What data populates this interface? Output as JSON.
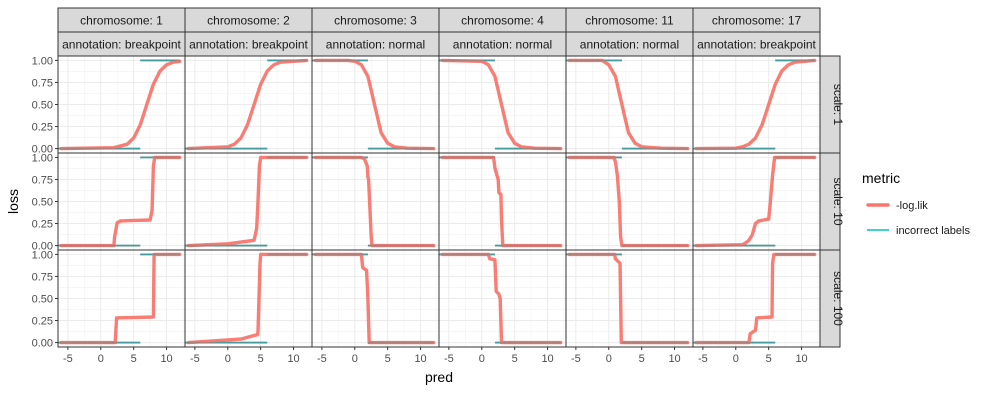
{
  "chart_data": {
    "type": "line",
    "title": "",
    "xlabel": "pred",
    "ylabel": "loss",
    "xlim": [
      -6.5,
      12.8
    ],
    "ylim": [
      -0.05,
      1.05
    ],
    "x_ticks": [
      -5,
      0,
      5,
      10
    ],
    "x_tick_labels": [
      "-5",
      "0",
      "5",
      "10"
    ],
    "y_ticks": [
      0,
      0.25,
      0.5,
      0.75,
      1
    ],
    "y_tick_labels": [
      "0.00",
      "0.25",
      "0.50",
      "0.75",
      "1.00"
    ],
    "grid": true,
    "legend": {
      "title": "metric",
      "placement": "right",
      "entries": [
        {
          "label": "-log.lik",
          "color": "#F8766D"
        },
        {
          "label": "incorrect labels",
          "color": "#00BFC4"
        }
      ]
    },
    "columns": [
      {
        "chromosome_label": "chromosome: 1",
        "annotation_label": "annotation: breakpoint",
        "annotation": "breakpoint",
        "center": 8
      },
      {
        "chromosome_label": "chromosome: 2",
        "annotation_label": "annotation: breakpoint",
        "annotation": "breakpoint",
        "center": 4
      },
      {
        "chromosome_label": "chromosome: 3",
        "annotation_label": "annotation: normal",
        "annotation": "normal",
        "center": 2.5
      },
      {
        "chromosome_label": "chromosome: 4",
        "annotation_label": "annotation: normal",
        "annotation": "normal",
        "center": 3
      },
      {
        "chromosome_label": "chromosome: 11",
        "annotation_label": "annotation: normal",
        "annotation": "normal",
        "center": 2
      },
      {
        "chromosome_label": "chromosome: 17",
        "annotation_label": "annotation: breakpoint",
        "annotation": "breakpoint",
        "center": 5.5
      }
    ],
    "rows": [
      {
        "scale_label": "scale: 1",
        "scale": 1
      },
      {
        "scale_label": "scale: 10",
        "scale": 10
      },
      {
        "scale_label": "scale: 100",
        "scale": 100
      }
    ],
    "incorrect_labels": {
      "breakpoint": {
        "low_segment": [
          -6.5,
          6
        ],
        "low_value": 0,
        "high_segment": [
          6,
          12
        ],
        "high_value": 1
      },
      "normal": {
        "high_segment": [
          -6.5,
          2
        ],
        "high_value": 1,
        "low_segment": [
          2,
          12
        ],
        "low_value": 0
      }
    },
    "series": [
      {
        "name": "-log.lik",
        "panels": [
          {
            "col": 0,
            "row": 0,
            "x": [
              -6,
              2,
              4,
              5,
              6,
              7,
              8,
              9,
              10,
              11,
              12
            ],
            "y": [
              0,
              0.01,
              0.05,
              0.12,
              0.27,
              0.5,
              0.73,
              0.88,
              0.95,
              0.98,
              0.99
            ]
          },
          {
            "col": 0,
            "row": 1,
            "x": [
              -6,
              2,
              2.1,
              2.5,
              3,
              7.5,
              7.8,
              8,
              8.2,
              12
            ],
            "y": [
              0,
              0,
              0.1,
              0.26,
              0.28,
              0.29,
              0.4,
              0.9,
              1,
              1
            ]
          },
          {
            "col": 0,
            "row": 2,
            "x": [
              -6,
              2.2,
              2.4,
              8,
              8.1,
              12
            ],
            "y": [
              0,
              0,
              0.28,
              0.29,
              1,
              1
            ]
          },
          {
            "col": 1,
            "row": 0,
            "x": [
              -6,
              0,
              1,
              2,
              3,
              4,
              5,
              6,
              7,
              8,
              12
            ],
            "y": [
              0,
              0.02,
              0.05,
              0.12,
              0.27,
              0.5,
              0.73,
              0.88,
              0.95,
              0.98,
              1
            ]
          },
          {
            "col": 1,
            "row": 1,
            "x": [
              -6,
              0,
              2,
              3,
              4,
              4.4,
              4.6,
              4.8,
              5,
              12
            ],
            "y": [
              0,
              0.02,
              0.04,
              0.05,
              0.06,
              0.2,
              0.5,
              0.9,
              1,
              1
            ]
          },
          {
            "col": 1,
            "row": 2,
            "x": [
              -6,
              2,
              4,
              4.5,
              4.6,
              4.9,
              5,
              12
            ],
            "y": [
              0,
              0.04,
              0.08,
              0.09,
              0.12,
              0.9,
              1,
              1
            ]
          },
          {
            "col": 2,
            "row": 0,
            "x": [
              -6,
              -1,
              0,
              1,
              2,
              3,
              4,
              5,
              6,
              8,
              12
            ],
            "y": [
              1,
              1,
              0.99,
              0.95,
              0.82,
              0.5,
              0.18,
              0.06,
              0.02,
              0.005,
              0
            ]
          },
          {
            "col": 2,
            "row": 1,
            "x": [
              -6,
              1,
              1.5,
              1.9,
              2,
              2.1,
              2.2,
              2.5,
              2.6,
              12
            ],
            "y": [
              1,
              1,
              0.98,
              0.9,
              0.78,
              0.75,
              0.6,
              0.1,
              0,
              0
            ]
          },
          {
            "col": 2,
            "row": 2,
            "x": [
              -6,
              1,
              1.2,
              1.8,
              2,
              2.2,
              12
            ],
            "y": [
              1,
              1,
              0.85,
              0.82,
              0.5,
              0,
              0
            ]
          },
          {
            "col": 3,
            "row": 0,
            "x": [
              -6,
              0,
              1,
              2,
              3,
              4,
              5,
              6,
              8,
              12
            ],
            "y": [
              1,
              0.99,
              0.95,
              0.82,
              0.5,
              0.18,
              0.06,
              0.02,
              0.005,
              0
            ]
          },
          {
            "col": 3,
            "row": 1,
            "x": [
              -6,
              1.8,
              2,
              2.5,
              2.6,
              2.9,
              3,
              3.2,
              12
            ],
            "y": [
              1,
              1,
              0.88,
              0.75,
              0.6,
              0.58,
              0.3,
              0,
              0
            ]
          },
          {
            "col": 3,
            "row": 2,
            "x": [
              -6,
              1,
              1.2,
              2,
              2.2,
              2.6,
              2.8,
              3,
              12
            ],
            "y": [
              1,
              1,
              0.95,
              0.94,
              0.58,
              0.55,
              0.5,
              0,
              0
            ]
          },
          {
            "col": 4,
            "row": 0,
            "x": [
              -6,
              -1,
              0,
              1,
              2,
              3,
              4,
              5,
              8,
              12
            ],
            "y": [
              1,
              1,
              0.95,
              0.82,
              0.5,
              0.18,
              0.06,
              0.02,
              0.005,
              0
            ]
          },
          {
            "col": 4,
            "row": 1,
            "x": [
              -6,
              0.8,
              1,
              1.3,
              1.6,
              1.8,
              2,
              12
            ],
            "y": [
              1,
              1,
              0.95,
              0.8,
              0.5,
              0.1,
              0,
              0
            ]
          },
          {
            "col": 4,
            "row": 2,
            "x": [
              -6,
              0.9,
              1,
              1.7,
              1.8,
              1.9,
              12
            ],
            "y": [
              1,
              1,
              0.95,
              0.9,
              0.5,
              0,
              0
            ]
          },
          {
            "col": 5,
            "row": 0,
            "x": [
              -6,
              0,
              1,
              2,
              3,
              4,
              5,
              6,
              7,
              8,
              9,
              12
            ],
            "y": [
              0,
              0.005,
              0.02,
              0.05,
              0.12,
              0.27,
              0.5,
              0.73,
              0.88,
              0.95,
              0.98,
              1
            ]
          },
          {
            "col": 5,
            "row": 1,
            "x": [
              -6,
              1,
              1.5,
              2,
              2.5,
              3,
              3.5,
              5,
              5.2,
              5.6,
              5.9,
              12
            ],
            "y": [
              0,
              0.01,
              0.03,
              0.06,
              0.12,
              0.25,
              0.28,
              0.3,
              0.45,
              0.8,
              1,
              1
            ]
          },
          {
            "col": 5,
            "row": 2,
            "x": [
              -6,
              2,
              2.2,
              3,
              3.2,
              5.5,
              5.6,
              5.8,
              12
            ],
            "y": [
              0,
              0,
              0.1,
              0.14,
              0.28,
              0.29,
              0.9,
              1,
              1
            ]
          }
        ]
      },
      {
        "name": "incorrect labels"
      }
    ]
  }
}
